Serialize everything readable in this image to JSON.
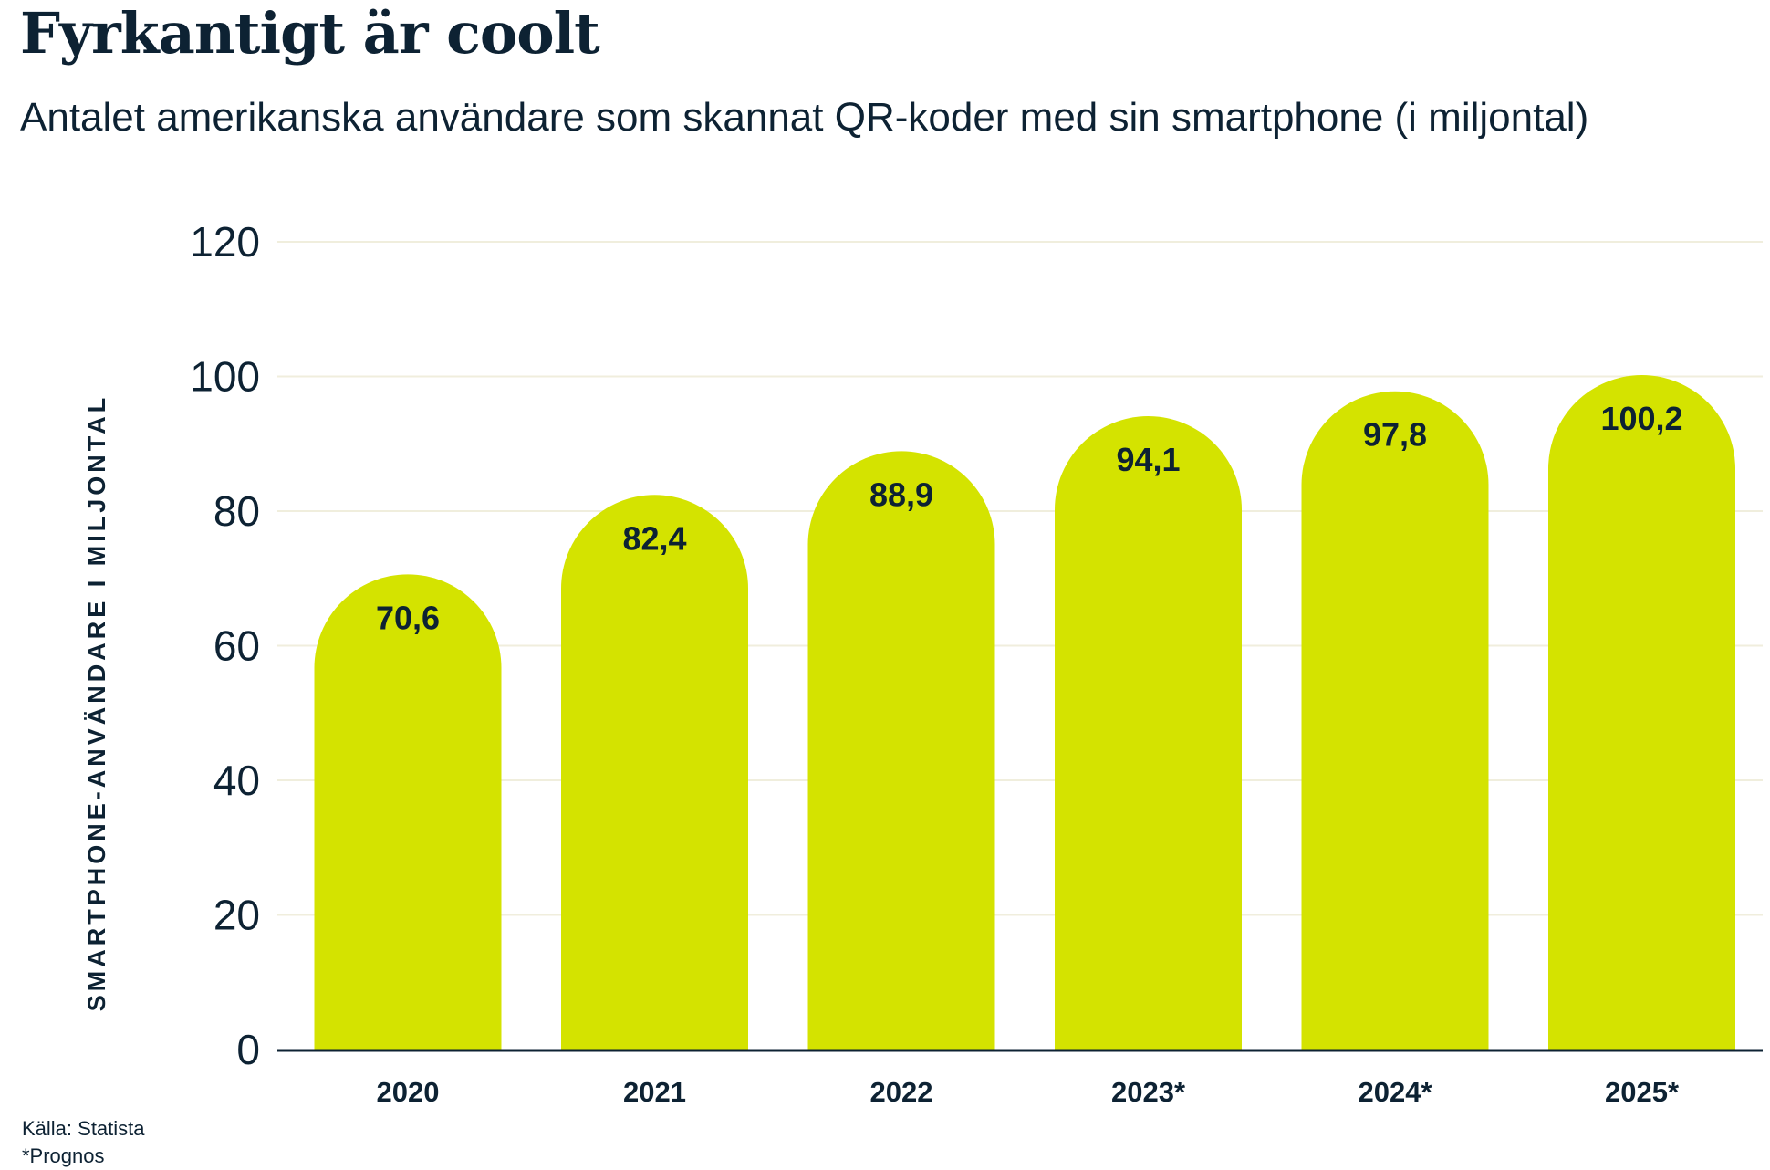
{
  "title": "Fyrkantigt är coolt",
  "subtitle": "Antalet amerikanska användare som skannat QR-koder med sin smartphone (i miljontal)",
  "footer": {
    "source": "Källa: Statista",
    "note": "*Prognos"
  },
  "colors": {
    "bar": "#d4e300",
    "text": "#0d2233",
    "grid": "#f0eedd"
  },
  "chart_data": {
    "type": "bar",
    "categories": [
      "2020",
      "2021",
      "2022",
      "2023*",
      "2024*",
      "2025*"
    ],
    "values": [
      70.6,
      82.4,
      88.9,
      94.1,
      97.8,
      100.2
    ],
    "data_labels": [
      "70,6",
      "82,4",
      "88,9",
      "94,1",
      "97,8",
      "100,2"
    ],
    "ylabel": "SMARTPHONE-ANVÄNDARE I MILJONTAL",
    "xlabel": "",
    "ylim": [
      0,
      120
    ],
    "yticks": [
      0,
      20,
      40,
      60,
      80,
      100,
      120
    ],
    "grid": true,
    "bar_shape": "rounded-top"
  }
}
